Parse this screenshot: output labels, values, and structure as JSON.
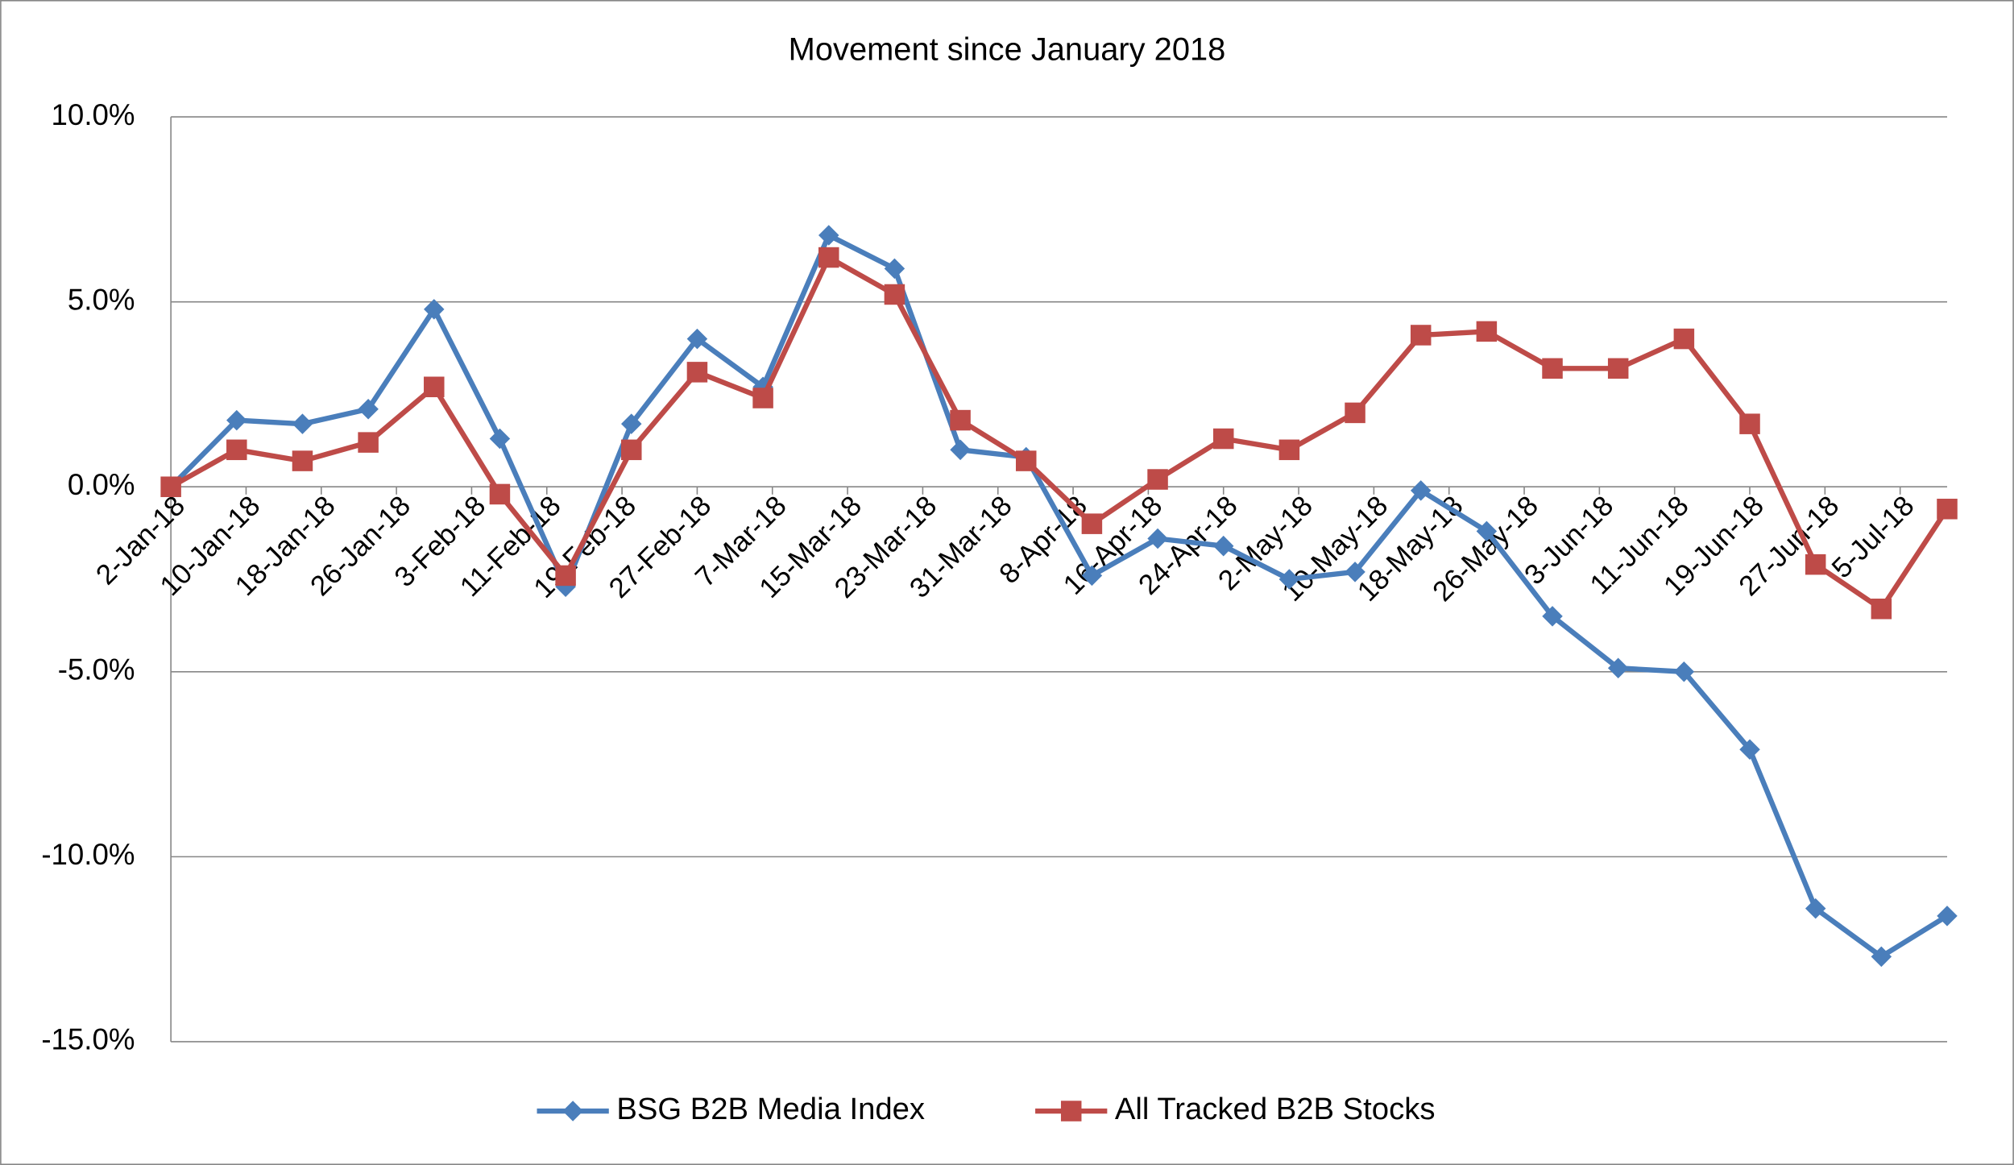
{
  "chart_data": {
    "type": "line",
    "title": "Movement since January 2018",
    "x": [
      "2018-01-02",
      "2018-01-09",
      "2018-01-16",
      "2018-01-23",
      "2018-01-30",
      "2018-02-06",
      "2018-02-13",
      "2018-02-20",
      "2018-02-27",
      "2018-03-06",
      "2018-03-13",
      "2018-03-20",
      "2018-03-27",
      "2018-04-03",
      "2018-04-10",
      "2018-04-17",
      "2018-04-24",
      "2018-05-01",
      "2018-05-08",
      "2018-05-15",
      "2018-05-22",
      "2018-05-29",
      "2018-06-05",
      "2018-06-12",
      "2018-06-19",
      "2018-06-26",
      "2018-07-03",
      "2018-07-10"
    ],
    "series": [
      {
        "name": "BSG B2B Media Index",
        "color": "#4a7ebb",
        "marker": "diamond",
        "values": [
          0,
          1.8,
          1.7,
          2.1,
          4.8,
          1.3,
          -2.7,
          1.7,
          4.0,
          2.7,
          6.8,
          5.9,
          1.0,
          0.8,
          -2.4,
          -1.4,
          -1.6,
          -2.5,
          -2.3,
          -0.1,
          -1.2,
          -3.5,
          -4.9,
          -5.0,
          -7.1,
          -11.4,
          -12.7,
          -11.6
        ]
      },
      {
        "name": "All Tracked B2B Stocks",
        "color": "#be4b48",
        "marker": "square",
        "values": [
          0,
          1.0,
          0.7,
          1.2,
          2.7,
          -0.2,
          -2.4,
          1.0,
          3.1,
          2.4,
          6.2,
          5.2,
          1.8,
          0.7,
          -1.0,
          0.2,
          1.3,
          1.0,
          2.0,
          4.1,
          4.2,
          3.2,
          3.2,
          4.0,
          1.7,
          -2.1,
          -3.3,
          -0.6
        ]
      }
    ],
    "xlim": [
      "2018-01-02",
      "2018-07-10"
    ],
    "xticks": [
      {
        "value": "2018-01-02",
        "label": "2-Jan-18"
      },
      {
        "value": "2018-01-10",
        "label": "10-Jan-18"
      },
      {
        "value": "2018-01-18",
        "label": "18-Jan-18"
      },
      {
        "value": "2018-01-26",
        "label": "26-Jan-18"
      },
      {
        "value": "2018-02-03",
        "label": "3-Feb-18"
      },
      {
        "value": "2018-02-11",
        "label": "11-Feb-18"
      },
      {
        "value": "2018-02-19",
        "label": "19-Feb-18"
      },
      {
        "value": "2018-02-27",
        "label": "27-Feb-18"
      },
      {
        "value": "2018-03-07",
        "label": "7-Mar-18"
      },
      {
        "value": "2018-03-15",
        "label": "15-Mar-18"
      },
      {
        "value": "2018-03-23",
        "label": "23-Mar-18"
      },
      {
        "value": "2018-03-31",
        "label": "31-Mar-18"
      },
      {
        "value": "2018-04-08",
        "label": "8-Apr-18"
      },
      {
        "value": "2018-04-16",
        "label": "16-Apr-18"
      },
      {
        "value": "2018-04-24",
        "label": "24-Apr-18"
      },
      {
        "value": "2018-05-02",
        "label": "2-May-18"
      },
      {
        "value": "2018-05-10",
        "label": "10-May-18"
      },
      {
        "value": "2018-05-18",
        "label": "18-May-18"
      },
      {
        "value": "2018-05-26",
        "label": "26-May-18"
      },
      {
        "value": "2018-06-03",
        "label": "3-Jun-18"
      },
      {
        "value": "2018-06-11",
        "label": "11-Jun-18"
      },
      {
        "value": "2018-06-19",
        "label": "19-Jun-18"
      },
      {
        "value": "2018-06-27",
        "label": "27-Jun-18"
      },
      {
        "value": "2018-07-05",
        "label": "5-Jul-18"
      }
    ],
    "ylim": [
      -15,
      10
    ],
    "yticks": [
      {
        "value": -15,
        "label": "-15.0%"
      },
      {
        "value": -10,
        "label": "-10.0%"
      },
      {
        "value": -5,
        "label": "-5.0%"
      },
      {
        "value": 0,
        "label": "0.0%"
      },
      {
        "value": 5,
        "label": "5.0%"
      },
      {
        "value": 10,
        "label": "10.0%"
      }
    ],
    "grid": true,
    "legend": "bottom"
  }
}
